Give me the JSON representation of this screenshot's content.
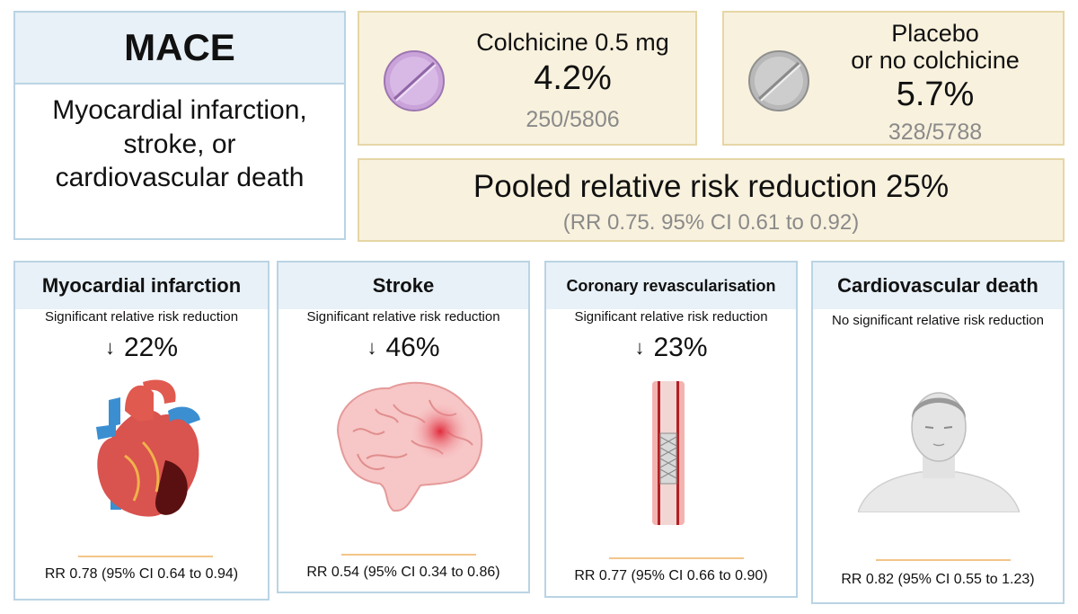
{
  "mace": {
    "title": "MACE",
    "description_lines": [
      "Myocardial infarction,",
      "stroke, or",
      "cardiovascular death"
    ]
  },
  "colchicine": {
    "label": "Colchicine 0.5 mg",
    "percent": "4.2%",
    "fraction": "250/5806",
    "color": "#c9a3d9"
  },
  "placebo": {
    "label_lines": [
      "Placebo",
      "or no colchicine"
    ],
    "percent": "5.7%",
    "fraction": "328/5788",
    "color": "#b8b8b8"
  },
  "pooled": {
    "main": "Pooled relative risk reduction 25%",
    "sub": "(RR 0.75. 95% CI 0.61 to 0.92)"
  },
  "outcomes": [
    {
      "title": "Myocardial infarction",
      "significance": "Significant relative risk reduction",
      "reduction": "22%",
      "rr": "RR 0.78 (95% CI 0.64 to 0.94)",
      "icon": "heart-icon"
    },
    {
      "title": "Stroke",
      "significance": "Significant relative risk reduction",
      "reduction": "46%",
      "rr": "RR 0.54 (95% CI 0.34 to 0.86)",
      "icon": "brain-icon"
    },
    {
      "title": "Coronary revascularisation",
      "significance": "Significant relative risk reduction",
      "reduction": "23%",
      "rr": "RR 0.77 (95% CI 0.66 to 0.90)",
      "icon": "stent-icon"
    },
    {
      "title": "Cardiovascular death",
      "significance": "No significant relative risk reduction",
      "reduction": "",
      "rr": "RR 0.82 (95% CI 0.55 to 1.23)",
      "icon": "person-icon"
    }
  ],
  "arrow_symbol": "↓",
  "colors": {
    "header_blue": "#e8f1f7",
    "border_blue": "#b9d4e4",
    "beige": "#f8f1dd",
    "divider": "#f3c58a"
  }
}
